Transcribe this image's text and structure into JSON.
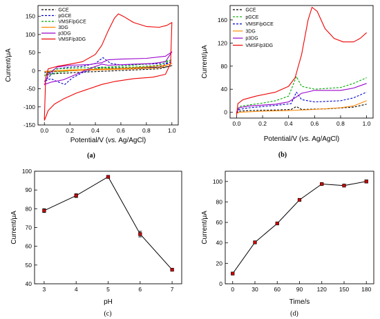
{
  "figure": {
    "captions": [
      "(a)",
      "(b)",
      "(c)",
      "(d)"
    ]
  },
  "chart_data": [
    {
      "panel": "(a)",
      "type": "line",
      "xlabel_main": "Potential/V (",
      "xlabel_italic": "vs.",
      "xlabel_tail": " Ag/AgCl)",
      "ylabel": "Current/μA",
      "xlim": [
        -0.05,
        1.05
      ],
      "ylim": [
        -150,
        180
      ],
      "xticks": [
        0.0,
        0.2,
        0.4,
        0.6,
        0.8,
        1.0
      ],
      "yticks": [
        -150,
        -100,
        -50,
        0,
        50,
        100,
        150
      ],
      "legend_position": "top-left",
      "series": [
        {
          "name": "GCE",
          "color": "#000000",
          "dash": "dash",
          "forward": [
            [
              0.0,
              -5
            ],
            [
              0.1,
              -2
            ],
            [
              0.2,
              0
            ],
            [
              0.4,
              2
            ],
            [
              0.6,
              5
            ],
            [
              0.8,
              8
            ],
            [
              0.95,
              10
            ],
            [
              1.0,
              14
            ]
          ],
          "reverse": [
            [
              1.0,
              14
            ],
            [
              0.9,
              5
            ],
            [
              0.7,
              2
            ],
            [
              0.5,
              -1
            ],
            [
              0.3,
              -4
            ],
            [
              0.1,
              -8
            ],
            [
              0.0,
              -10
            ]
          ]
        },
        {
          "name": "pGCE",
          "color": "#0000cc",
          "dash": "dash",
          "forward": [
            [
              0.0,
              -30
            ],
            [
              0.05,
              -12
            ],
            [
              0.1,
              5
            ],
            [
              0.2,
              10
            ],
            [
              0.3,
              12
            ],
            [
              0.4,
              20
            ],
            [
              0.46,
              36
            ],
            [
              0.52,
              20
            ],
            [
              0.6,
              16
            ],
            [
              0.8,
              18
            ],
            [
              0.95,
              20
            ],
            [
              1.0,
              25
            ]
          ],
          "reverse": [
            [
              1.0,
              25
            ],
            [
              0.9,
              10
            ],
            [
              0.7,
              8
            ],
            [
              0.5,
              6
            ],
            [
              0.45,
              10
            ],
            [
              0.4,
              5
            ],
            [
              0.3,
              -5
            ],
            [
              0.22,
              -20
            ],
            [
              0.16,
              -38
            ],
            [
              0.1,
              -30
            ],
            [
              0.05,
              -22
            ],
            [
              0.0,
              -30
            ]
          ]
        },
        {
          "name": "VMSF/pGCE",
          "color": "#00aa00",
          "dash": "dash",
          "forward": [
            [
              0.0,
              -15
            ],
            [
              0.05,
              0
            ],
            [
              0.1,
              5
            ],
            [
              0.3,
              8
            ],
            [
              0.5,
              10
            ],
            [
              0.7,
              15
            ],
            [
              0.9,
              22
            ],
            [
              1.0,
              30
            ]
          ],
          "reverse": [
            [
              1.0,
              30
            ],
            [
              0.9,
              15
            ],
            [
              0.7,
              10
            ],
            [
              0.5,
              8
            ],
            [
              0.3,
              3
            ],
            [
              0.1,
              -5
            ],
            [
              0.0,
              -15
            ]
          ]
        },
        {
          "name": "3DG",
          "color": "#ff8800",
          "dash": "solid",
          "forward": [
            [
              0.0,
              -2
            ],
            [
              0.2,
              2
            ],
            [
              0.4,
              4
            ],
            [
              0.6,
              6
            ],
            [
              0.8,
              10
            ],
            [
              0.95,
              15
            ],
            [
              1.0,
              20
            ]
          ],
          "reverse": [
            [
              1.0,
              20
            ],
            [
              0.9,
              8
            ],
            [
              0.7,
              5
            ],
            [
              0.5,
              3
            ],
            [
              0.3,
              1
            ],
            [
              0.1,
              -1
            ],
            [
              0.0,
              -2
            ]
          ]
        },
        {
          "name": "p3DG",
          "color": "#9900cc",
          "dash": "solid",
          "forward": [
            [
              0.0,
              -40
            ],
            [
              0.03,
              -10
            ],
            [
              0.1,
              10
            ],
            [
              0.2,
              15
            ],
            [
              0.35,
              17
            ],
            [
              0.45,
              22
            ],
            [
              0.5,
              30
            ],
            [
              0.6,
              32
            ],
            [
              0.8,
              34
            ],
            [
              0.95,
              40
            ],
            [
              1.0,
              52
            ]
          ],
          "reverse": [
            [
              1.0,
              52
            ],
            [
              0.95,
              25
            ],
            [
              0.85,
              20
            ],
            [
              0.7,
              18
            ],
            [
              0.5,
              15
            ],
            [
              0.45,
              18
            ],
            [
              0.35,
              5
            ],
            [
              0.25,
              -10
            ],
            [
              0.15,
              -25
            ],
            [
              0.05,
              -32
            ],
            [
              0.0,
              -38
            ]
          ]
        },
        {
          "name": "VMSF/p3DG",
          "color": "#ee0000",
          "dash": "solid",
          "forward": [
            [
              0.0,
              -135
            ],
            [
              0.01,
              -20
            ],
            [
              0.03,
              5
            ],
            [
              0.1,
              12
            ],
            [
              0.2,
              18
            ],
            [
              0.3,
              25
            ],
            [
              0.4,
              45
            ],
            [
              0.45,
              70
            ],
            [
              0.5,
              110
            ],
            [
              0.55,
              145
            ],
            [
              0.58,
              157
            ],
            [
              0.62,
              150
            ],
            [
              0.7,
              133
            ],
            [
              0.8,
              122
            ],
            [
              0.9,
              120
            ],
            [
              0.96,
              125
            ],
            [
              1.0,
              133
            ]
          ],
          "reverse": [
            [
              1.0,
              133
            ],
            [
              0.99,
              20
            ],
            [
              0.95,
              -10
            ],
            [
              0.85,
              -18
            ],
            [
              0.7,
              -22
            ],
            [
              0.55,
              -30
            ],
            [
              0.45,
              -38
            ],
            [
              0.35,
              -50
            ],
            [
              0.25,
              -62
            ],
            [
              0.15,
              -78
            ],
            [
              0.08,
              -92
            ],
            [
              0.03,
              -110
            ],
            [
              0.0,
              -138
            ]
          ]
        }
      ]
    },
    {
      "panel": "(b)",
      "type": "line",
      "xlabel_main": "Potential/V (",
      "xlabel_italic": "vs.",
      "xlabel_tail": " Ag/AgCl)",
      "ylabel": "Current/μA",
      "xlim": [
        -0.05,
        1.05
      ],
      "ylim": [
        -10,
        185
      ],
      "xticks": [
        0.0,
        0.2,
        0.4,
        0.6,
        0.8,
        1.0
      ],
      "yticks": [
        0,
        40,
        80,
        120,
        160
      ],
      "legend_position": "top-left",
      "series": [
        {
          "name": "GCE",
          "color": "#000000",
          "dash": "dash",
          "points": [
            [
              0.0,
              -2
            ],
            [
              0.02,
              2
            ],
            [
              0.1,
              3
            ],
            [
              0.3,
              4
            ],
            [
              0.42,
              5
            ],
            [
              0.46,
              10
            ],
            [
              0.5,
              5
            ],
            [
              0.7,
              6
            ],
            [
              0.9,
              9
            ],
            [
              1.0,
              14
            ]
          ]
        },
        {
          "name": "pGCE",
          "color": "#00aa00",
          "dash": "dash",
          "points": [
            [
              0.0,
              0
            ],
            [
              0.02,
              10
            ],
            [
              0.1,
              13
            ],
            [
              0.2,
              16
            ],
            [
              0.3,
              20
            ],
            [
              0.4,
              28
            ],
            [
              0.46,
              62
            ],
            [
              0.5,
              45
            ],
            [
              0.6,
              40
            ],
            [
              0.8,
              43
            ],
            [
              0.9,
              50
            ],
            [
              1.0,
              60
            ]
          ]
        },
        {
          "name": "VMSF/pGCE",
          "color": "#0000cc",
          "dash": "dash",
          "points": [
            [
              0.0,
              -1
            ],
            [
              0.02,
              5
            ],
            [
              0.1,
              8
            ],
            [
              0.3,
              12
            ],
            [
              0.42,
              15
            ],
            [
              0.46,
              35
            ],
            [
              0.5,
              22
            ],
            [
              0.6,
              18
            ],
            [
              0.8,
              20
            ],
            [
              0.9,
              25
            ],
            [
              1.0,
              35
            ]
          ]
        },
        {
          "name": "3DG",
          "color": "#ff8800",
          "dash": "solid",
          "points": [
            [
              0.0,
              -2
            ],
            [
              0.02,
              0
            ],
            [
              0.2,
              2
            ],
            [
              0.4,
              3
            ],
            [
              0.6,
              5
            ],
            [
              0.8,
              8
            ],
            [
              0.9,
              11
            ],
            [
              1.0,
              20
            ]
          ]
        },
        {
          "name": "p3DG",
          "color": "#9900cc",
          "dash": "solid",
          "points": [
            [
              0.0,
              0
            ],
            [
              0.02,
              8
            ],
            [
              0.1,
              11
            ],
            [
              0.3,
              14
            ],
            [
              0.4,
              18
            ],
            [
              0.45,
              25
            ],
            [
              0.5,
              33
            ],
            [
              0.6,
              38
            ],
            [
              0.8,
              38
            ],
            [
              0.9,
              42
            ],
            [
              1.0,
              50
            ]
          ]
        },
        {
          "name": "VMSF/p3DG",
          "color": "#ee0000",
          "dash": "solid",
          "points": [
            [
              0.0,
              -5
            ],
            [
              0.01,
              15
            ],
            [
              0.05,
              22
            ],
            [
              0.15,
              28
            ],
            [
              0.3,
              35
            ],
            [
              0.4,
              45
            ],
            [
              0.45,
              60
            ],
            [
              0.5,
              100
            ],
            [
              0.55,
              160
            ],
            [
              0.58,
              182
            ],
            [
              0.62,
              175
            ],
            [
              0.68,
              145
            ],
            [
              0.75,
              128
            ],
            [
              0.82,
              122
            ],
            [
              0.9,
              122
            ],
            [
              0.95,
              128
            ],
            [
              1.0,
              138
            ]
          ]
        }
      ]
    },
    {
      "panel": "(c)",
      "type": "line",
      "xlabel": "pH",
      "ylabel": "Current/μA",
      "xlim": [
        2.7,
        7.3
      ],
      "ylim": [
        40,
        100
      ],
      "xticks": [
        3,
        4,
        5,
        6,
        7
      ],
      "yticks": [
        40,
        50,
        60,
        70,
        80,
        90,
        100
      ],
      "series": [
        {
          "x": [
            3,
            4,
            5,
            6,
            7
          ],
          "y": [
            79,
            87,
            97,
            66.5,
            47.5
          ],
          "err": [
            1,
            1,
            0.5,
            1.5,
            0.5
          ],
          "color": "#000000",
          "marker_color": "#cc0000"
        }
      ]
    },
    {
      "panel": "(d)",
      "type": "line",
      "xlabel": "Time/s",
      "ylabel": "Current/μA",
      "xlim": [
        -10,
        190
      ],
      "ylim": [
        0,
        110
      ],
      "xticks": [
        0,
        30,
        60,
        90,
        120,
        150,
        180
      ],
      "yticks": [
        0,
        20,
        40,
        60,
        80,
        100
      ],
      "series": [
        {
          "x": [
            0,
            30,
            60,
            90,
            120,
            150,
            180
          ],
          "y": [
            10,
            40.5,
            59,
            82,
            97.5,
            96,
            100
          ],
          "err": [
            0.5,
            0.5,
            0.5,
            0.5,
            0.5,
            1,
            1.5
          ],
          "color": "#000000",
          "marker_color": "#cc0000"
        }
      ]
    }
  ]
}
